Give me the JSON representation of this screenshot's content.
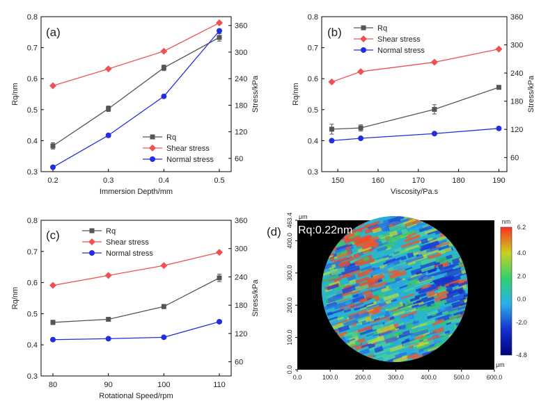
{
  "chart_data": [
    {
      "type": "line",
      "panel_label": "(a)",
      "xlabel": "Immersion Depth/mm",
      "ylabel": "Rq/nm",
      "y2label": "Stress/kPa",
      "x_ticks": [
        "0.2",
        "0.3",
        "0.4",
        "0.5"
      ],
      "y_ticks": [
        "0.3",
        "0.4",
        "0.5",
        "0.6",
        "0.7",
        "0.8"
      ],
      "y2_ticks": [
        "60",
        "120",
        "180",
        "240",
        "300",
        "360"
      ],
      "xlim": [
        0.2,
        0.5
      ],
      "ylim": [
        0.3,
        0.8
      ],
      "y2lim": [
        30,
        380
      ],
      "legend_position": "bottom-right",
      "series": [
        {
          "name": "Rq",
          "axis": "left",
          "marker": "square",
          "color": "#555555",
          "x": [
            0.2,
            0.3,
            0.4,
            0.5
          ],
          "y": [
            0.383,
            0.503,
            0.635,
            0.733
          ],
          "err": [
            0.01,
            0.009,
            0.009,
            0.012
          ]
        },
        {
          "name": "Shear stress",
          "axis": "right",
          "marker": "diamond",
          "color": "#f05050",
          "x": [
            0.2,
            0.3,
            0.4,
            0.5
          ],
          "y": [
            224,
            262,
            302,
            366
          ]
        },
        {
          "name": "Normal stress",
          "axis": "right",
          "marker": "circle",
          "color": "#1f2fe0",
          "x": [
            0.2,
            0.3,
            0.4,
            0.5
          ],
          "y": [
            40,
            112,
            200,
            348
          ]
        }
      ]
    },
    {
      "type": "line",
      "panel_label": "(b)",
      "xlabel": "Viscosity/Pa.s",
      "ylabel": "Rq/nm",
      "y2label": "Stress/kPa",
      "x_ticks": [
        "150",
        "160",
        "170",
        "180",
        "190"
      ],
      "y_ticks": [
        "0.3",
        "0.4",
        "0.5",
        "0.6",
        "0.7",
        "0.8"
      ],
      "y2_ticks": [
        "60",
        "120",
        "180",
        "240",
        "300",
        "360"
      ],
      "xlim": [
        146,
        192
      ],
      "ylim": [
        0.3,
        0.8
      ],
      "y2lim": [
        30,
        360
      ],
      "legend_position": "top-left",
      "series": [
        {
          "name": "Rq",
          "axis": "left",
          "marker": "square",
          "color": "#555555",
          "x": [
            148.5,
            155.7,
            174,
            190
          ],
          "y": [
            0.437,
            0.441,
            0.501,
            0.572
          ],
          "err": [
            0.016,
            0.01,
            0.015,
            0.004
          ]
        },
        {
          "name": "Shear stress",
          "axis": "right",
          "marker": "diamond",
          "color": "#f05050",
          "x": [
            148.5,
            155.7,
            174,
            190
          ],
          "y": [
            221,
            243,
            263,
            291
          ]
        },
        {
          "name": "Normal stress",
          "axis": "right",
          "marker": "circle",
          "color": "#1f2fe0",
          "x": [
            148.5,
            155.7,
            174,
            190
          ],
          "y": [
            96,
            101,
            111,
            122
          ]
        }
      ]
    },
    {
      "type": "line",
      "panel_label": "(c)",
      "xlabel": "Rotational Speed/rpm",
      "ylabel": "Rq/nm",
      "y2label": "Stress/kPa",
      "x_ticks": [
        "80",
        "90",
        "100",
        "110"
      ],
      "y_ticks": [
        "0.3",
        "0.4",
        "0.5",
        "0.6",
        "0.7",
        "0.8"
      ],
      "y2_ticks": [
        "60",
        "120",
        "180",
        "240",
        "300",
        "360"
      ],
      "xlim": [
        80,
        110
      ],
      "ylim": [
        0.3,
        0.8
      ],
      "y2lim": [
        30,
        360
      ],
      "legend_position": "top-left",
      "series": [
        {
          "name": "Rq",
          "axis": "left",
          "marker": "square",
          "color": "#555555",
          "x": [
            80,
            90,
            100,
            110
          ],
          "y": [
            0.472,
            0.482,
            0.523,
            0.615
          ],
          "err": [
            0.007,
            0.006,
            0.007,
            0.012
          ]
        },
        {
          "name": "Shear stress",
          "axis": "right",
          "marker": "diamond",
          "color": "#f05050",
          "x": [
            80,
            90,
            100,
            110
          ],
          "y": [
            222,
            243,
            264,
            292
          ]
        },
        {
          "name": "Normal stress",
          "axis": "right",
          "marker": "circle",
          "color": "#1f2fe0",
          "x": [
            80,
            90,
            100,
            110
          ],
          "y": [
            107,
            109,
            112,
            145
          ]
        }
      ]
    },
    {
      "type": "heatmap",
      "panel_label": "(d)",
      "annotation": "Rq:0.22nm",
      "x_ticks": [
        "0.0",
        "100.0",
        "200.0",
        "300.0",
        "400.0",
        "500.0",
        "600.0"
      ],
      "y_ticks": [
        "0.0",
        "100.0",
        "200.0",
        "300.0",
        "400.0",
        "463.4"
      ],
      "x_unit": "μm",
      "y_unit": "μm",
      "colorbar_unit": "nm",
      "colorbar_ticks": [
        "6.2",
        "4.0",
        "2.0",
        "0.0",
        "-2.0",
        "-4.8"
      ],
      "colorbar_range": [
        -4.8,
        6.2
      ],
      "colorbar_colors": [
        "#000080",
        "#1430d0",
        "#2ab0e8",
        "#30d070",
        "#c8d020",
        "#ff3020"
      ]
    }
  ]
}
